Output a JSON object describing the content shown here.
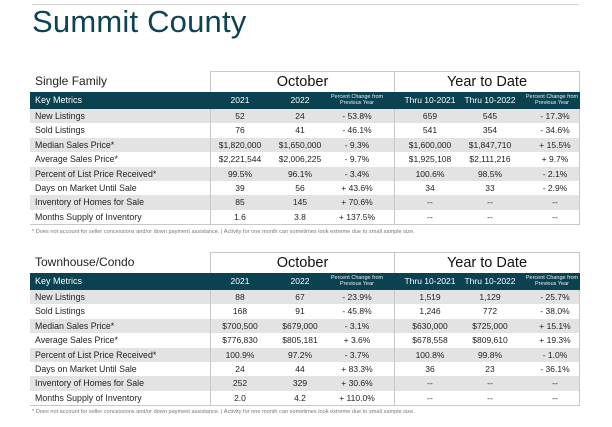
{
  "title": "Summit County",
  "columns": {
    "key_metrics": "Key Metrics",
    "oct_2021": "2021",
    "oct_2022": "2022",
    "pct_change": "Percent Change from Previous Year",
    "ytd_2021": "Thru 10-2021",
    "ytd_2022": "Thru 10-2022"
  },
  "period_labels": {
    "month": "October",
    "ytd": "Year to Date"
  },
  "footnote": "* Does not account for seller concessions and/or down payment assistance. | Activity for one month can sometimes look extreme due to small sample size.",
  "sections": [
    {
      "label": "Single Family",
      "rows": [
        {
          "metric": "New Listings",
          "v": [
            "52",
            "24",
            "- 53.8%",
            "659",
            "545",
            "- 17.3%"
          ]
        },
        {
          "metric": "Sold Listings",
          "v": [
            "76",
            "41",
            "- 46.1%",
            "541",
            "354",
            "- 34.6%"
          ]
        },
        {
          "metric": "Median Sales Price*",
          "v": [
            "$1,820,000",
            "$1,650,000",
            "- 9.3%",
            "$1,600,000",
            "$1,847,710",
            "+ 15.5%"
          ]
        },
        {
          "metric": "Average Sales Price*",
          "v": [
            "$2,221,544",
            "$2,006,225",
            "- 9.7%",
            "$1,925,108",
            "$2,111,216",
            "+ 9.7%"
          ]
        },
        {
          "metric": "Percent of List Price Received*",
          "v": [
            "99.5%",
            "96.1%",
            "- 3.4%",
            "100.6%",
            "98.5%",
            "- 2.1%"
          ]
        },
        {
          "metric": "Days on Market Until Sale",
          "v": [
            "39",
            "56",
            "+ 43.6%",
            "34",
            "33",
            "- 2.9%"
          ]
        },
        {
          "metric": "Inventory of Homes for Sale",
          "v": [
            "85",
            "145",
            "+ 70.6%",
            "--",
            "--",
            "--"
          ]
        },
        {
          "metric": "Months Supply of Inventory",
          "v": [
            "1.6",
            "3.8",
            "+ 137.5%",
            "--",
            "--",
            "--"
          ]
        }
      ]
    },
    {
      "label": "Townhouse/Condo",
      "rows": [
        {
          "metric": "New Listings",
          "v": [
            "88",
            "67",
            "- 23.9%",
            "1,519",
            "1,129",
            "- 25.7%"
          ]
        },
        {
          "metric": "Sold Listings",
          "v": [
            "168",
            "91",
            "- 45.8%",
            "1,246",
            "772",
            "- 38.0%"
          ]
        },
        {
          "metric": "Median Sales Price*",
          "v": [
            "$700,500",
            "$679,000",
            "- 3.1%",
            "$630,000",
            "$725,000",
            "+ 15.1%"
          ]
        },
        {
          "metric": "Average Sales Price*",
          "v": [
            "$776,830",
            "$805,181",
            "+ 3.6%",
            "$678,558",
            "$809,610",
            "+ 19.3%"
          ]
        },
        {
          "metric": "Percent of List Price Received*",
          "v": [
            "100.9%",
            "97.2%",
            "- 3.7%",
            "100.8%",
            "99.8%",
            "- 1.0%"
          ]
        },
        {
          "metric": "Days on Market Until Sale",
          "v": [
            "24",
            "44",
            "+ 83.3%",
            "36",
            "23",
            "- 36.1%"
          ]
        },
        {
          "metric": "Inventory of Homes for Sale",
          "v": [
            "252",
            "329",
            "+ 30.6%",
            "--",
            "--",
            "--"
          ]
        },
        {
          "metric": "Months Supply of Inventory",
          "v": [
            "2.0",
            "4.2",
            "+ 110.0%",
            "--",
            "--",
            "--"
          ]
        }
      ]
    }
  ]
}
